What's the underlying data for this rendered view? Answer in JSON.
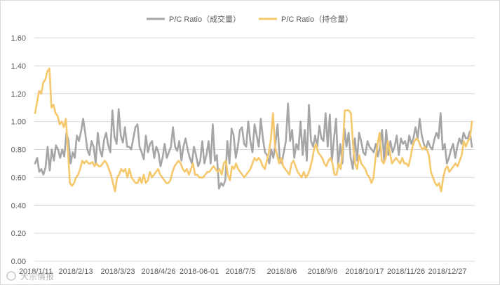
{
  "watermark": "大宗情报",
  "chart_data": {
    "type": "line",
    "title": "",
    "xlabel": "",
    "ylabel": "",
    "ylim": [
      0,
      1.6
    ],
    "yticks": [
      "0.00",
      "0.20",
      "0.40",
      "0.60",
      "0.80",
      "1.00",
      "1.20",
      "1.40",
      "1.60"
    ],
    "xticks": [
      "2018/1/11",
      "2018/2/13",
      "2018/3/23",
      "2018/4/26",
      "2018-06-01",
      "2018/7/5",
      "2018/8/6",
      "2018/9/6",
      "2018/10/17",
      "2018/11/26",
      "2018/12/27"
    ],
    "grid": true,
    "legend": "top",
    "series": [
      {
        "name": "P/C Ratio（成交量）",
        "color": "#a6a6a6",
        "values": [
          0.7,
          0.74,
          0.64,
          0.66,
          0.62,
          0.67,
          0.82,
          0.65,
          0.8,
          0.72,
          0.83,
          0.8,
          0.74,
          0.8,
          0.75,
          0.92,
          0.86,
          0.7,
          0.78,
          0.74,
          0.9,
          0.86,
          0.93,
          1.02,
          0.92,
          0.8,
          0.76,
          0.86,
          0.82,
          0.7,
          0.92,
          0.8,
          0.75,
          0.87,
          0.92,
          0.83,
          0.78,
          1.08,
          0.89,
          0.84,
          1.09,
          0.9,
          0.85,
          0.96,
          0.82,
          0.82,
          0.8,
          0.88,
          0.96,
          0.98,
          0.82,
          0.78,
          0.73,
          0.9,
          0.78,
          0.84,
          0.86,
          0.74,
          0.82,
          0.78,
          0.68,
          0.74,
          0.84,
          0.74,
          0.78,
          0.82,
          0.96,
          0.82,
          0.79,
          0.86,
          0.72,
          0.82,
          0.88,
          0.8,
          0.74,
          0.7,
          0.82,
          0.76,
          0.68,
          0.72,
          0.86,
          0.7,
          0.76,
          0.86,
          0.7,
          0.98,
          0.72,
          0.76,
          0.52,
          0.56,
          0.54,
          0.58,
          0.86,
          0.7,
          0.95,
          0.9,
          0.74,
          0.82,
          0.94,
          0.96,
          0.84,
          0.82,
          1.0,
          0.86,
          0.78,
          0.98,
          0.9,
          0.82,
          1.02,
          0.88,
          0.78,
          0.76,
          0.7,
          0.8,
          0.74,
          0.84,
          0.98,
          0.74,
          0.7,
          0.78,
          0.86,
          1.13,
          0.86,
          0.94,
          0.74,
          0.84,
          0.8,
          1.0,
          0.76,
          0.94,
          0.72,
          1.12,
          0.86,
          0.82,
          0.9,
          0.82,
          0.97,
          0.88,
          0.86,
          1.06,
          0.82,
          1.05,
          0.72,
          0.88,
          1.02,
          0.68,
          0.84,
          0.7,
          0.95,
          0.82,
          0.92,
          0.74,
          0.66,
          0.88,
          0.72,
          0.92,
          0.86,
          0.78,
          0.76,
          0.86,
          0.82,
          0.8,
          0.78,
          0.84,
          0.75,
          0.82,
          0.94,
          0.72,
          0.94,
          0.76,
          0.86,
          0.78,
          0.82,
          0.9,
          0.76,
          0.88,
          0.84,
          0.86,
          0.8,
          0.9,
          0.84,
          0.88,
          0.96,
          0.88,
          1.02,
          0.9,
          0.84,
          0.8,
          0.86,
          0.82,
          0.8,
          0.87,
          0.92,
          0.88,
          1.06,
          0.8,
          0.84,
          0.7,
          0.74,
          0.8,
          0.84,
          0.74,
          0.82,
          0.88,
          0.84,
          0.92,
          0.88,
          0.88,
          0.93,
          0.82
        ]
      },
      {
        "name": "P/C Ratio（持仓量）",
        "color": "#f6c86c",
        "values": [
          1.06,
          1.14,
          1.22,
          1.2,
          1.28,
          1.3,
          1.36,
          1.38,
          1.1,
          1.12,
          1.06,
          1.04,
          0.98,
          1.0,
          0.96,
          1.02,
          0.8,
          0.56,
          0.54,
          0.56,
          0.6,
          0.62,
          0.66,
          0.72,
          0.7,
          0.72,
          0.7,
          0.7,
          0.71,
          0.68,
          0.7,
          0.68,
          0.68,
          0.7,
          0.72,
          0.7,
          0.66,
          0.62,
          0.56,
          0.5,
          0.6,
          0.62,
          0.66,
          0.64,
          0.66,
          0.6,
          0.66,
          0.6,
          0.58,
          0.56,
          0.56,
          0.6,
          0.56,
          0.62,
          0.56,
          0.58,
          0.64,
          0.6,
          0.62,
          0.64,
          0.66,
          0.62,
          0.6,
          0.58,
          0.56,
          0.56,
          0.58,
          0.64,
          0.68,
          0.7,
          0.72,
          0.7,
          0.66,
          0.64,
          0.66,
          0.62,
          0.66,
          0.7,
          0.62,
          0.62,
          0.6,
          0.6,
          0.6,
          0.62,
          0.64,
          0.64,
          0.66,
          0.68,
          0.66,
          0.64,
          0.66,
          0.62,
          0.7,
          0.72,
          0.62,
          0.58,
          0.68,
          0.66,
          0.7,
          0.66,
          0.64,
          0.62,
          0.6,
          0.62,
          0.64,
          0.66,
          0.7,
          0.74,
          0.72,
          0.74,
          0.72,
          0.68,
          0.66,
          0.72,
          0.78,
          0.88,
          1.06,
          0.82,
          0.76,
          0.7,
          0.74,
          0.68,
          0.66,
          0.64,
          0.62,
          0.7,
          0.72,
          0.68,
          0.64,
          0.62,
          0.6,
          0.64,
          0.6,
          0.62,
          0.66,
          0.72,
          0.8,
          0.84,
          0.78,
          0.76,
          0.74,
          0.7,
          0.68,
          0.72,
          0.74,
          0.7,
          0.62,
          0.62,
          0.7,
          0.66,
          0.8,
          1.08,
          1.08,
          1.08,
          1.06,
          0.84,
          0.7,
          0.66,
          0.76,
          0.7,
          0.68,
          0.66,
          0.62,
          0.6,
          0.56,
          0.6,
          0.74,
          0.84,
          0.92,
          0.72,
          0.7,
          0.74,
          0.86,
          0.78,
          0.7,
          0.72,
          0.74,
          0.72,
          0.7,
          0.74,
          0.7,
          0.7,
          0.68,
          0.74,
          0.82,
          0.86,
          0.88,
          0.86,
          0.82,
          0.8,
          0.82,
          0.8,
          0.76,
          0.64,
          0.6,
          0.56,
          0.54,
          0.56,
          0.5,
          0.6,
          0.66,
          0.68,
          0.64,
          0.66,
          0.68,
          0.7,
          0.68,
          0.72,
          0.76,
          0.86,
          0.82,
          0.86,
          0.88,
          1.0
        ]
      }
    ]
  }
}
